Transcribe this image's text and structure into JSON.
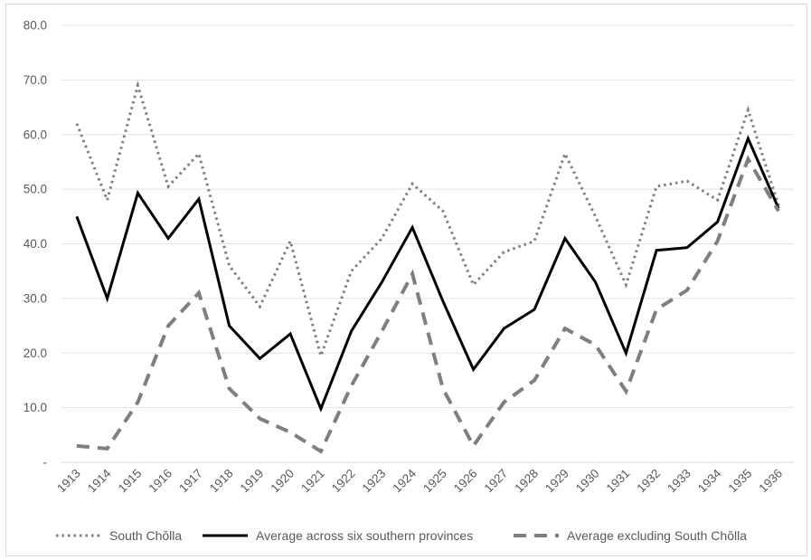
{
  "chart_data": {
    "type": "line",
    "title": "",
    "xlabel": "",
    "ylabel": "",
    "ylim": [
      0,
      80
    ],
    "ytick_labels": [
      "-",
      "10.0",
      "20.0",
      "30.0",
      "40.0",
      "50.0",
      "60.0",
      "70.0",
      "80.0"
    ],
    "grid": true,
    "legend_position": "bottom",
    "categories": [
      "1913",
      "1914",
      "1915",
      "1916",
      "1917",
      "1918",
      "1919",
      "1920",
      "1921",
      "1922",
      "1923",
      "1924",
      "1925",
      "1926",
      "1927",
      "1928",
      "1929",
      "1930",
      "1931",
      "1932",
      "1933",
      "1934",
      "1935",
      "1936"
    ],
    "series": [
      {
        "name": "South Chŏlla",
        "style": "dotted",
        "color": "#7f7f7f",
        "values": [
          62.0,
          48.0,
          69.0,
          50.5,
          56.5,
          36.0,
          28.5,
          40.5,
          19.5,
          35.0,
          41.0,
          51.0,
          46.0,
          32.5,
          38.5,
          40.5,
          56.5,
          45.0,
          32.5,
          50.5,
          51.5,
          48.0,
          64.5,
          47.0
        ]
      },
      {
        "name": "Average across six southern provinces",
        "style": "solid",
        "color": "#000000",
        "values": [
          45.0,
          30.0,
          49.3,
          41.0,
          48.2,
          25.0,
          19.0,
          23.5,
          9.8,
          24.0,
          33.0,
          43.0,
          29.5,
          17.0,
          24.5,
          28.0,
          41.0,
          33.0,
          20.0,
          38.8,
          39.3,
          44.0,
          59.3,
          46.5
        ]
      },
      {
        "name": "Average excluding South Chŏlla",
        "style": "dashed",
        "color": "#7f7f7f",
        "values": [
          3.0,
          2.5,
          11.0,
          25.0,
          31.0,
          13.5,
          8.0,
          5.5,
          2.0,
          14.0,
          24.0,
          34.5,
          13.5,
          3.0,
          11.0,
          15.0,
          24.5,
          21.5,
          13.0,
          28.0,
          31.5,
          40.5,
          55.5,
          46.0
        ]
      }
    ]
  }
}
